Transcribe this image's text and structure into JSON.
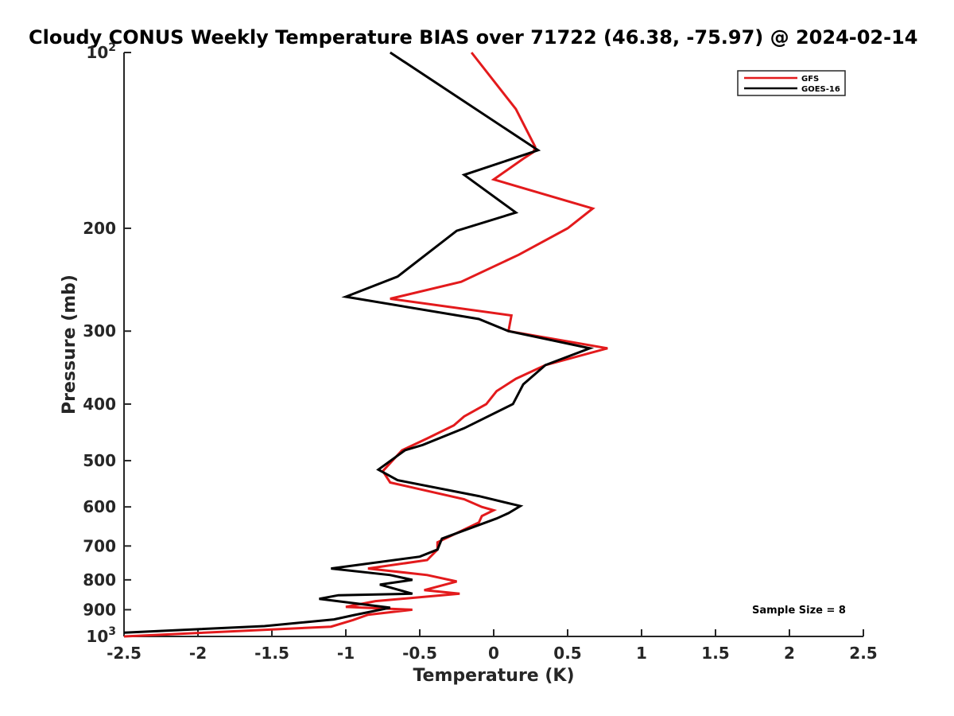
{
  "chart_data": {
    "type": "line",
    "title": "Cloudy CONUS Weekly Temperature BIAS over 71722 (46.38, -75.97) @ 2024-02-14",
    "xlabel": "Temperature (K)",
    "ylabel": "Pressure (mb)",
    "xlim": [
      -2.5,
      2.5
    ],
    "ylim": [
      100,
      1000
    ],
    "y_scale": "log",
    "y_direction": "reversed",
    "x_ticks": [
      "-2.5",
      "-2",
      "-1.5",
      "-1",
      "-0.5",
      "0",
      "0.5",
      "1",
      "1.5",
      "2",
      "2.5"
    ],
    "x_tick_values": [
      -2.5,
      -2,
      -1.5,
      -1,
      -0.5,
      0,
      0.5,
      1,
      1.5,
      2,
      2.5
    ],
    "y_ticks": [
      {
        "value": 100,
        "base": "10",
        "exp": "2"
      },
      {
        "value": 200,
        "label": "200"
      },
      {
        "value": 300,
        "label": "300"
      },
      {
        "value": 400,
        "label": "400"
      },
      {
        "value": 500,
        "label": "500"
      },
      {
        "value": 600,
        "label": "600"
      },
      {
        "value": 700,
        "label": "700"
      },
      {
        "value": 800,
        "label": "800"
      },
      {
        "value": 900,
        "label": "900"
      },
      {
        "value": 1000,
        "base": "10",
        "exp": "3"
      }
    ],
    "grid": false,
    "legend_position": "top-right",
    "annotation": "Sample Size = 8",
    "series": [
      {
        "name": "GFS",
        "color": "#e31a1c",
        "points": [
          [
            -0.15,
            100
          ],
          [
            0.15,
            125
          ],
          [
            0.28,
            145
          ],
          [
            0.27,
            148
          ],
          [
            0.2,
            152
          ],
          [
            0.0,
            165
          ],
          [
            0.67,
            185
          ],
          [
            0.5,
            200
          ],
          [
            0.17,
            222
          ],
          [
            -0.22,
            247
          ],
          [
            -0.7,
            264
          ],
          [
            0.12,
            282
          ],
          [
            0.1,
            300
          ],
          [
            0.77,
            321
          ],
          [
            0.35,
            343
          ],
          [
            0.15,
            362
          ],
          [
            0.02,
            380
          ],
          [
            -0.05,
            400
          ],
          [
            -0.2,
            420
          ],
          [
            -0.27,
            435
          ],
          [
            -0.45,
            458
          ],
          [
            -0.62,
            480
          ],
          [
            -0.75,
            521
          ],
          [
            -0.7,
            545
          ],
          [
            -0.2,
            582
          ],
          [
            -0.08,
            600
          ],
          [
            0.0,
            608
          ],
          [
            -0.08,
            622
          ],
          [
            -0.1,
            638
          ],
          [
            -0.38,
            690
          ],
          [
            -0.38,
            710
          ],
          [
            -0.45,
            740
          ],
          [
            -0.85,
            765
          ],
          [
            -0.45,
            785
          ],
          [
            -0.25,
            805
          ],
          [
            -0.47,
            833
          ],
          [
            -0.23,
            845
          ],
          [
            -0.8,
            870
          ],
          [
            -1.0,
            890
          ],
          [
            -0.55,
            900
          ],
          [
            -0.85,
            918
          ],
          [
            -0.95,
            937
          ],
          [
            -1.1,
            962
          ],
          [
            -2.5,
            1000
          ]
        ]
      },
      {
        "name": "GOES-16",
        "color": "#000000",
        "points": [
          [
            -0.7,
            100
          ],
          [
            0.3,
            147
          ],
          [
            -0.2,
            162
          ],
          [
            0.15,
            188
          ],
          [
            -0.25,
            202
          ],
          [
            -0.65,
            242
          ],
          [
            -1.0,
            262
          ],
          [
            -0.1,
            286
          ],
          [
            0.1,
            300
          ],
          [
            0.65,
            321
          ],
          [
            0.35,
            343
          ],
          [
            0.2,
            370
          ],
          [
            0.13,
            400
          ],
          [
            -0.2,
            440
          ],
          [
            -0.48,
            470
          ],
          [
            -0.6,
            480
          ],
          [
            -0.78,
            518
          ],
          [
            -0.65,
            540
          ],
          [
            -0.1,
            575
          ],
          [
            0.18,
            598
          ],
          [
            0.1,
            615
          ],
          [
            0.02,
            628
          ],
          [
            -0.35,
            680
          ],
          [
            -0.38,
            710
          ],
          [
            -0.5,
            730
          ],
          [
            -1.1,
            765
          ],
          [
            -0.7,
            785
          ],
          [
            -0.55,
            800
          ],
          [
            -0.77,
            815
          ],
          [
            -0.55,
            845
          ],
          [
            -1.05,
            850
          ],
          [
            -1.18,
            862
          ],
          [
            -0.9,
            880
          ],
          [
            -0.7,
            893
          ],
          [
            -0.95,
            920
          ],
          [
            -1.08,
            935
          ],
          [
            -1.55,
            960
          ],
          [
            -2.5,
            985
          ]
        ]
      }
    ]
  }
}
